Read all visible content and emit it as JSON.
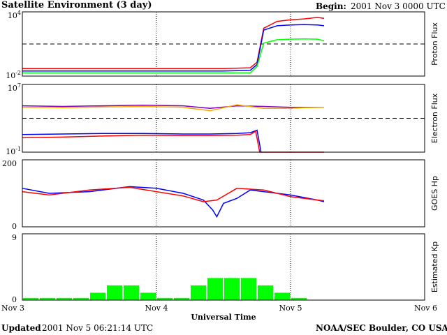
{
  "header": {
    "title": "Satellite Environment (3 day)",
    "begin_label": "Begin:",
    "begin_value": "2001 Nov 3 0000 UTC"
  },
  "footer": {
    "updated_label": "Updated",
    "updated_value": "2001 Nov  5 06:21:14 UTC",
    "credit": "NOAA/SEC Boulder, CO USA"
  },
  "x_axis": {
    "label": "Universal Time",
    "ticks": [
      "Nov 3",
      "Nov 4",
      "Nov 5",
      "Nov 6"
    ],
    "range_days": [
      0,
      3
    ]
  },
  "colors": {
    "red": "#ff0000",
    "blue": "#0000ff",
    "green": "#00ff00",
    "orange": "#ffa500",
    "purple": "#7f00bf",
    "black": "#000000"
  },
  "chart_data": [
    {
      "type": "line",
      "ylabel": "Proton Flux",
      "y_scale": "log",
      "ylim": [
        0.01,
        10000
      ],
      "y_ticks": [
        {
          "base": "10",
          "exp": "4"
        },
        {
          "base": "10",
          "exp": "-2"
        }
      ],
      "threshold": 10,
      "series": [
        {
          "color": "red",
          "x": [
            0,
            0.3,
            0.6,
            0.9,
            1.2,
            1.5,
            1.7,
            1.75,
            1.8,
            1.9,
            2.0,
            2.1,
            2.2,
            2.25
          ],
          "y": [
            0.05,
            0.05,
            0.05,
            0.05,
            0.05,
            0.05,
            0.06,
            0.2,
            300,
            1300,
            1800,
            2200,
            3000,
            2500
          ]
        },
        {
          "color": "blue",
          "x": [
            0,
            0.3,
            0.6,
            0.9,
            1.2,
            1.5,
            1.7,
            1.75,
            1.8,
            1.9,
            2.0,
            2.1,
            2.2,
            2.25
          ],
          "y": [
            0.03,
            0.03,
            0.03,
            0.03,
            0.03,
            0.03,
            0.035,
            0.12,
            200,
            500,
            600,
            650,
            600,
            500
          ]
        },
        {
          "color": "green",
          "x": [
            0,
            0.3,
            0.6,
            0.9,
            1.2,
            1.5,
            1.7,
            1.75,
            1.8,
            1.9,
            2.0,
            2.1,
            2.2,
            2.25
          ],
          "y": [
            0.02,
            0.02,
            0.02,
            0.02,
            0.02,
            0.02,
            0.02,
            0.08,
            12,
            25,
            28,
            30,
            28,
            20
          ]
        }
      ]
    },
    {
      "type": "line",
      "ylabel": "Electron Flux",
      "y_scale": "log",
      "ylim": [
        0.1,
        10000000
      ],
      "y_ticks": [
        {
          "base": "10",
          "exp": "7"
        },
        {
          "base": "10",
          "exp": "-1"
        }
      ],
      "threshold": 1000,
      "series": [
        {
          "color": "purple",
          "x": [
            0,
            0.3,
            0.6,
            0.9,
            1.2,
            1.4,
            1.6,
            1.8,
            2.0,
            2.1,
            2.25
          ],
          "y": [
            30000,
            25000,
            30000,
            35000,
            30000,
            15000,
            30000,
            25000,
            20000,
            20000,
            20000
          ]
        },
        {
          "color": "orange",
          "x": [
            0,
            0.3,
            0.6,
            0.9,
            1.2,
            1.4,
            1.6,
            1.8,
            2.0,
            2.1,
            2.25
          ],
          "y": [
            20000,
            18000,
            22000,
            25000,
            20000,
            8000,
            40000,
            15000,
            15000,
            18000,
            20000
          ]
        },
        {
          "color": "blue",
          "x": [
            0,
            0.3,
            0.6,
            0.9,
            1.2,
            1.4,
            1.6,
            1.7,
            1.75,
            1.78
          ],
          "y": [
            12,
            14,
            16,
            16,
            14,
            14,
            16,
            20,
            40,
            0.1
          ]
        },
        {
          "color": "red",
          "x": [
            0,
            0.3,
            0.6,
            0.9,
            1.2,
            1.4,
            1.6,
            1.7,
            1.74,
            1.77,
            2.25
          ],
          "y": [
            5,
            6,
            8,
            10,
            9,
            9,
            10,
            12,
            30,
            0.1,
            0.1
          ]
        }
      ]
    },
    {
      "type": "line",
      "ylabel": "GOES Hp",
      "y_scale": "linear",
      "ylim": [
        0,
        200
      ],
      "y_ticks": [
        {
          "base": "200",
          "exp": ""
        },
        {
          "base": "0",
          "exp": ""
        }
      ],
      "series": [
        {
          "color": "blue",
          "x": [
            0,
            0.2,
            0.5,
            0.8,
            1.0,
            1.2,
            1.35,
            1.42,
            1.45,
            1.5,
            1.6,
            1.7,
            1.8,
            2.0,
            2.2,
            2.25
          ],
          "y": [
            115,
            100,
            105,
            120,
            115,
            100,
            80,
            50,
            30,
            70,
            85,
            110,
            105,
            95,
            80,
            75
          ]
        },
        {
          "color": "red",
          "x": [
            0,
            0.2,
            0.5,
            0.8,
            1.0,
            1.2,
            1.35,
            1.45,
            1.6,
            1.8,
            2.0,
            2.2,
            2.25
          ],
          "y": [
            105,
            95,
            110,
            118,
            105,
            92,
            75,
            80,
            115,
            110,
            90,
            80,
            78
          ]
        }
      ]
    },
    {
      "type": "bar",
      "ylabel": "Estimated Kp",
      "ylim": [
        0,
        9
      ],
      "y_ticks": [
        {
          "base": "9",
          "exp": ""
        },
        {
          "base": "0",
          "exp": ""
        }
      ],
      "bar_color": "green",
      "bar_width_days": 0.125,
      "values": [
        0.3,
        0.3,
        0.3,
        0.3,
        1,
        2,
        2,
        1,
        0.3,
        0.3,
        2,
        3,
        3,
        3,
        2,
        1,
        0.3
      ]
    }
  ]
}
